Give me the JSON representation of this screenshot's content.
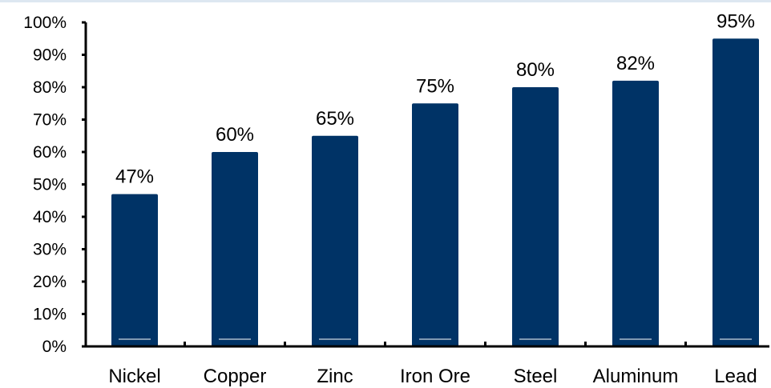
{
  "chart_data": {
    "type": "bar",
    "categories": [
      "Nickel",
      "Copper",
      "Zinc",
      "Iron Ore",
      "Steel",
      "Aluminum",
      "Lead"
    ],
    "values": [
      47,
      60,
      65,
      75,
      80,
      82,
      95
    ],
    "data_labels": [
      "47%",
      "60%",
      "65%",
      "75%",
      "80%",
      "82%",
      "95%"
    ],
    "y_ticks": [
      "0%",
      "10%",
      "20%",
      "30%",
      "40%",
      "50%",
      "60%",
      "70%",
      "80%",
      "90%",
      "100%"
    ],
    "ylim": [
      0,
      100
    ],
    "title": "",
    "xlabel": "",
    "ylabel": "",
    "grid": false,
    "bar_color": "#003366",
    "axis_color": "#000000"
  }
}
